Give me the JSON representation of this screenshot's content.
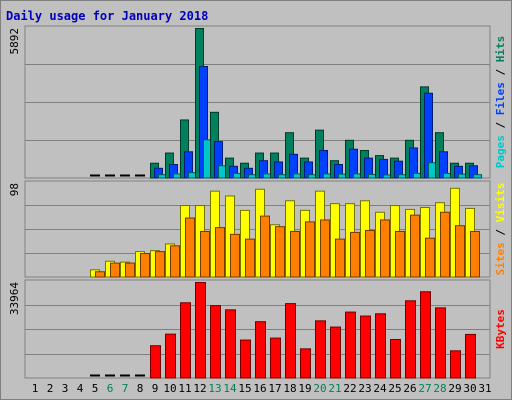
{
  "chart_data": {
    "type": "bar",
    "title": "Daily usage for January 2018",
    "categories": [
      "1",
      "2",
      "3",
      "4",
      "5",
      "6",
      "7",
      "8",
      "9",
      "10",
      "11",
      "12",
      "13",
      "14",
      "15",
      "16",
      "17",
      "18",
      "19",
      "20",
      "21",
      "22",
      "23",
      "24",
      "25",
      "26",
      "27",
      "28",
      "29",
      "30",
      "31"
    ],
    "weekend_days": [
      "6",
      "7",
      "13",
      "14",
      "20",
      "21",
      "27",
      "28"
    ],
    "panels": [
      {
        "name": "hits-files-pages",
        "ymax_label": "5892",
        "ymax": 5892,
        "side_label": [
          {
            "text": "Pages",
            "color": "#00c8c8"
          },
          {
            "text": " / ",
            "color": "#000000"
          },
          {
            "text": "Files",
            "color": "#0040ff"
          },
          {
            "text": " / ",
            "color": "#000000"
          },
          {
            "text": "Hits",
            "color": "#00805c"
          }
        ],
        "series": [
          {
            "name": "Hits",
            "color": "#00805c",
            "values": [
              0,
              0,
              0,
              0,
              0,
              0,
              0,
              0,
              600,
              1000,
              2300,
              5892,
              2600,
              800,
              600,
              1000,
              1000,
              1800,
              800,
              1900,
              700,
              1500,
              1100,
              900,
              800,
              1500,
              3600,
              1800,
              600,
              600,
              0
            ]
          },
          {
            "name": "Files",
            "color": "#0040ff",
            "values": [
              0,
              0,
              0,
              0,
              0,
              0,
              0,
              0,
              400,
              550,
              1050,
              4400,
              1450,
              480,
              400,
              700,
              650,
              950,
              650,
              1100,
              550,
              1150,
              800,
              750,
              680,
              1200,
              3350,
              1050,
              480,
              500,
              0
            ]
          },
          {
            "name": "Pages",
            "color": "#00c8c8",
            "values": [
              0,
              0,
              0,
              0,
              0,
              0,
              0,
              0,
              150,
              180,
              230,
              1520,
              500,
              200,
              150,
              180,
              150,
              180,
              150,
              180,
              170,
              180,
              160,
              140,
              150,
              200,
              620,
              200,
              170,
              150,
              0
            ]
          }
        ]
      },
      {
        "name": "visits-sites",
        "ymax_label": "98",
        "ymax": 98,
        "side_label": [
          {
            "text": "Sites",
            "color": "#ff8000"
          },
          {
            "text": " / ",
            "color": "#000000"
          },
          {
            "text": "Visits",
            "color": "#ffff00"
          }
        ],
        "series": [
          {
            "name": "Visits",
            "color": "#ffff00",
            "values": [
              0,
              0,
              0,
              0,
              8,
              17,
              16,
              27,
              28,
              35,
              75,
              75,
              90,
              85,
              70,
              92,
              55,
              80,
              70,
              90,
              77,
              77,
              80,
              68,
              75,
              71,
              73,
              78,
              93,
              72,
              0
            ]
          },
          {
            "name": "Sites",
            "color": "#ff8000",
            "values": [
              0,
              0,
              0,
              0,
              6,
              15,
              15,
              25,
              27,
              33,
              62,
              48,
              52,
              45,
              40,
              64,
              53,
              48,
              58,
              60,
              40,
              47,
              49,
              60,
              48,
              65,
              41,
              68,
              54,
              48,
              0
            ]
          }
        ]
      },
      {
        "name": "kbytes",
        "ymax_label": "33964",
        "ymax": 33964,
        "side_label": [
          {
            "text": "KBytes",
            "color": "#ff0000"
          }
        ],
        "series": [
          {
            "name": "KBytes",
            "color": "#ff0000",
            "values": [
              0,
              0,
              0,
              0,
              0,
              0,
              0,
              0,
              11600,
              15700,
              26800,
              33964,
              25800,
              24300,
              13600,
              20100,
              14300,
              26500,
              10500,
              20400,
              18200,
              23500,
              22100,
              22900,
              13800,
              27500,
              30700,
              25000,
              9800,
              15600,
              0
            ]
          }
        ]
      }
    ]
  }
}
